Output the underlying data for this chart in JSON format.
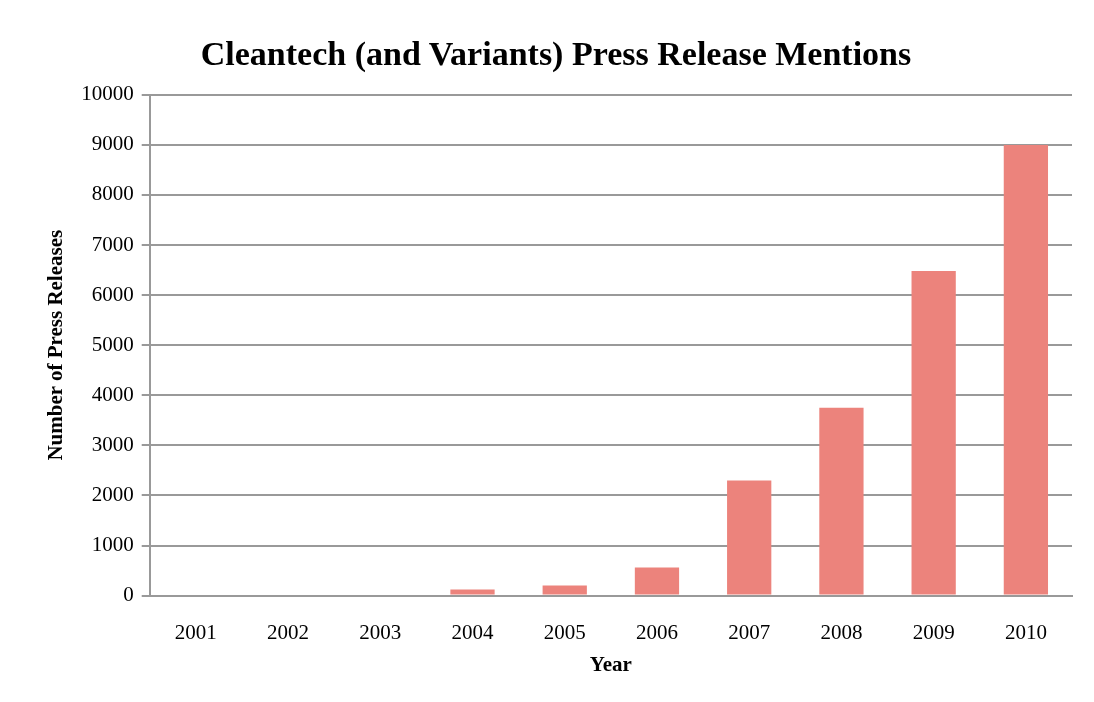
{
  "chart_data": {
    "type": "bar",
    "title": "Cleantech (and Variants) Press Release Mentions",
    "xlabel": "Year",
    "ylabel": "Number of Press Releases",
    "categories": [
      "2001",
      "2002",
      "2003",
      "2004",
      "2005",
      "2006",
      "2007",
      "2008",
      "2009",
      "2010"
    ],
    "values": [
      0,
      0,
      0,
      120,
      200,
      560,
      2300,
      3750,
      6480,
      9000
    ],
    "color": "#ec837c",
    "ylim": [
      0,
      10000
    ],
    "yticks": [
      0,
      1000,
      2000,
      3000,
      4000,
      5000,
      6000,
      7000,
      8000,
      9000,
      10000
    ],
    "grid": "y",
    "legend": false
  }
}
